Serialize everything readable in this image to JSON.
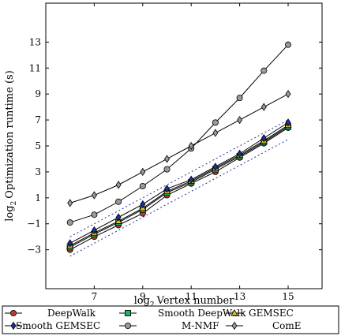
{
  "chart_data": {
    "type": "line",
    "title": "",
    "xlabel": "Vertex number",
    "xlabel_prefix": "log",
    "xlabel_sub": "2",
    "ylabel": "Optimization runtime (s)",
    "ylabel_prefix": "log",
    "ylabel_sub": "2",
    "xlim": [
      5.0,
      16.4
    ],
    "ylim": [
      -6.0,
      16.0
    ],
    "xticks": [
      7,
      9,
      11,
      13,
      15
    ],
    "yticks": [
      -3,
      -1,
      1,
      3,
      5,
      7,
      9,
      11,
      13
    ],
    "xtick_labels": [
      "7",
      "9",
      "11",
      "13",
      "15"
    ],
    "ytick_labels": [
      "−3",
      "−1",
      "1",
      "3",
      "5",
      "7",
      "9",
      "11",
      "13"
    ],
    "grid": false,
    "legend_position": "bottom",
    "x": [
      6,
      7,
      8,
      9,
      10,
      11,
      12,
      13,
      14,
      15
    ],
    "series": [
      {
        "name": "DeepWalk",
        "color": "#c0392b",
        "marker": "circle",
        "values": [
          -3.0,
          -2.0,
          -1.1,
          -0.2,
          1.2,
          2.1,
          3.0,
          4.1,
          5.2,
          6.4
        ]
      },
      {
        "name": "Smooth DeepWalk",
        "color": "#27ae60",
        "marker": "square",
        "values": [
          -2.8,
          -1.8,
          -0.9,
          0.1,
          1.4,
          2.2,
          3.2,
          4.2,
          5.3,
          6.5
        ]
      },
      {
        "name": "GEMSEC",
        "color": "#e0c020",
        "marker": "triangle",
        "values": [
          -2.7,
          -1.7,
          -0.8,
          0.2,
          1.5,
          2.3,
          3.3,
          4.3,
          5.4,
          6.6
        ]
      },
      {
        "name": "Smooth GEMSEC",
        "color": "#1f2f9f",
        "marker": "diamond",
        "values": [
          -2.5,
          -1.5,
          -0.5,
          0.5,
          1.7,
          2.4,
          3.4,
          4.4,
          5.6,
          6.8
        ]
      },
      {
        "name": "M-NMF",
        "color": "#999999",
        "marker": "circle",
        "values": [
          -0.9,
          -0.3,
          0.7,
          1.9,
          3.2,
          4.8,
          6.8,
          8.7,
          10.8,
          12.8
        ]
      },
      {
        "name": "ComE",
        "color": "#999999",
        "marker": "diamond",
        "values": [
          0.6,
          1.2,
          2.0,
          3.0,
          4.0,
          5.0,
          6.0,
          7.0,
          8.0,
          9.0
        ]
      }
    ],
    "reference_lines": [
      {
        "from": [
          6,
          -3.5
        ],
        "to": [
          15,
          5.5
        ],
        "style": "dotted",
        "color": "#1f2f9f"
      },
      {
        "from": [
          6,
          -2.0
        ],
        "to": [
          15,
          7.0
        ],
        "style": "dotted",
        "color": "#1f2f9f"
      }
    ]
  }
}
